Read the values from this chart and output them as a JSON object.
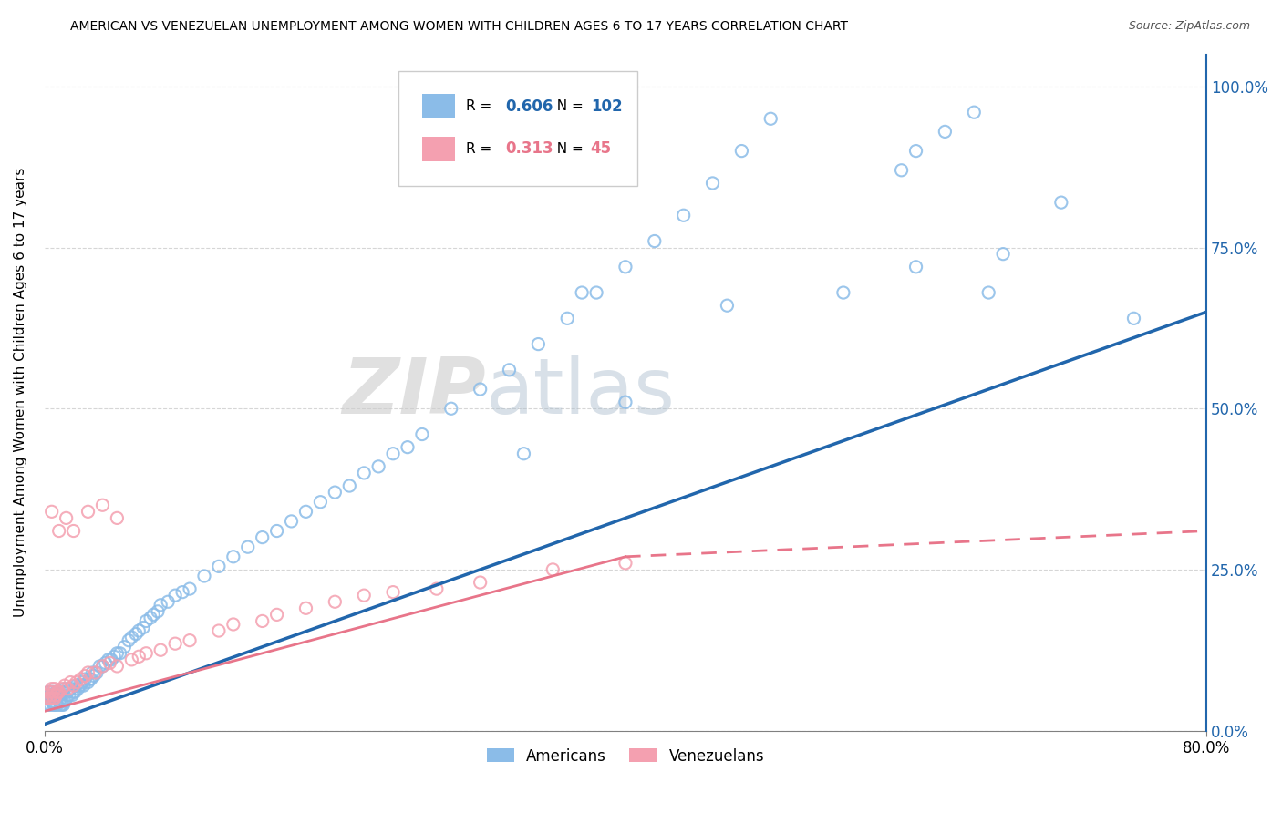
{
  "title": "AMERICAN VS VENEZUELAN UNEMPLOYMENT AMONG WOMEN WITH CHILDREN AGES 6 TO 17 YEARS CORRELATION CHART",
  "source": "Source: ZipAtlas.com",
  "ylabel": "Unemployment Among Women with Children Ages 6 to 17 years",
  "xlim": [
    0.0,
    0.8
  ],
  "ylim": [
    0.0,
    1.05
  ],
  "xticks": [
    0.0,
    0.8
  ],
  "xticklabels": [
    "0.0%",
    "80.0%"
  ],
  "yticks": [
    0.0,
    0.25,
    0.5,
    0.75,
    1.0
  ],
  "yticklabels_right": [
    "0.0%",
    "25.0%",
    "50.0%",
    "75.0%",
    "100.0%"
  ],
  "american_color": "#8BBCE8",
  "venezuelan_color": "#F4A0B0",
  "american_line_color": "#2166AC",
  "venezuelan_line_color": "#E8758A",
  "american_R": 0.606,
  "american_N": 102,
  "venezuelan_R": 0.313,
  "venezuelan_N": 45,
  "watermark_zip": "ZIP",
  "watermark_atlas": "atlas",
  "legend_american": "Americans",
  "legend_venezuelan": "Venezuelans",
  "grid_color": "#CCCCCC",
  "american_x": [
    0.001,
    0.002,
    0.003,
    0.003,
    0.004,
    0.004,
    0.005,
    0.005,
    0.006,
    0.006,
    0.007,
    0.007,
    0.008,
    0.008,
    0.009,
    0.009,
    0.01,
    0.01,
    0.011,
    0.011,
    0.012,
    0.012,
    0.013,
    0.013,
    0.014,
    0.014,
    0.015,
    0.016,
    0.017,
    0.018,
    0.019,
    0.02,
    0.021,
    0.022,
    0.023,
    0.024,
    0.025,
    0.026,
    0.027,
    0.028,
    0.03,
    0.031,
    0.032,
    0.033,
    0.034,
    0.036,
    0.038,
    0.04,
    0.042,
    0.044,
    0.046,
    0.048,
    0.05,
    0.052,
    0.055,
    0.058,
    0.06,
    0.063,
    0.065,
    0.068,
    0.07,
    0.073,
    0.075,
    0.078,
    0.08,
    0.085,
    0.09,
    0.095,
    0.1,
    0.11,
    0.12,
    0.13,
    0.14,
    0.15,
    0.16,
    0.17,
    0.18,
    0.19,
    0.2,
    0.21,
    0.22,
    0.23,
    0.24,
    0.25,
    0.26,
    0.28,
    0.3,
    0.32,
    0.34,
    0.36,
    0.38,
    0.4,
    0.42,
    0.44,
    0.46,
    0.48,
    0.5,
    0.55,
    0.6,
    0.65,
    0.7,
    0.75
  ],
  "american_y": [
    0.05,
    0.05,
    0.04,
    0.06,
    0.04,
    0.055,
    0.045,
    0.06,
    0.04,
    0.055,
    0.04,
    0.055,
    0.04,
    0.06,
    0.04,
    0.055,
    0.045,
    0.055,
    0.04,
    0.055,
    0.04,
    0.06,
    0.04,
    0.06,
    0.045,
    0.065,
    0.05,
    0.06,
    0.055,
    0.065,
    0.055,
    0.06,
    0.06,
    0.07,
    0.065,
    0.07,
    0.07,
    0.075,
    0.07,
    0.08,
    0.075,
    0.08,
    0.08,
    0.09,
    0.085,
    0.09,
    0.1,
    0.1,
    0.105,
    0.11,
    0.11,
    0.115,
    0.12,
    0.12,
    0.13,
    0.14,
    0.145,
    0.15,
    0.155,
    0.16,
    0.17,
    0.175,
    0.18,
    0.185,
    0.195,
    0.2,
    0.21,
    0.215,
    0.22,
    0.24,
    0.255,
    0.27,
    0.285,
    0.3,
    0.31,
    0.325,
    0.34,
    0.355,
    0.37,
    0.38,
    0.4,
    0.41,
    0.43,
    0.44,
    0.46,
    0.5,
    0.53,
    0.56,
    0.6,
    0.64,
    0.68,
    0.72,
    0.76,
    0.8,
    0.85,
    0.9,
    0.95,
    0.68,
    0.72,
    0.68,
    0.82,
    0.64
  ],
  "american_outliers_x": [
    0.33,
    0.37,
    0.4,
    0.47,
    0.59,
    0.6,
    0.62,
    0.64,
    0.66
  ],
  "american_outliers_y": [
    0.43,
    0.68,
    0.51,
    0.66,
    0.87,
    0.9,
    0.93,
    0.96,
    0.74
  ],
  "venezuelan_x": [
    0.001,
    0.002,
    0.003,
    0.003,
    0.004,
    0.005,
    0.005,
    0.006,
    0.006,
    0.007,
    0.007,
    0.008,
    0.009,
    0.01,
    0.012,
    0.014,
    0.016,
    0.018,
    0.02,
    0.022,
    0.025,
    0.028,
    0.03,
    0.035,
    0.04,
    0.045,
    0.05,
    0.06,
    0.065,
    0.07,
    0.08,
    0.09,
    0.1,
    0.12,
    0.13,
    0.15,
    0.16,
    0.18,
    0.2,
    0.22,
    0.24,
    0.27,
    0.3,
    0.35,
    0.4
  ],
  "venezuelan_y": [
    0.05,
    0.055,
    0.05,
    0.06,
    0.05,
    0.055,
    0.065,
    0.05,
    0.06,
    0.05,
    0.065,
    0.055,
    0.06,
    0.06,
    0.065,
    0.07,
    0.065,
    0.075,
    0.07,
    0.075,
    0.08,
    0.085,
    0.09,
    0.09,
    0.1,
    0.105,
    0.1,
    0.11,
    0.115,
    0.12,
    0.125,
    0.135,
    0.14,
    0.155,
    0.165,
    0.17,
    0.18,
    0.19,
    0.2,
    0.21,
    0.215,
    0.22,
    0.23,
    0.25,
    0.26
  ],
  "venezuelan_outliers_x": [
    0.005,
    0.01,
    0.015,
    0.02,
    0.03,
    0.04,
    0.05
  ],
  "venezuelan_outliers_y": [
    0.34,
    0.31,
    0.33,
    0.31,
    0.34,
    0.35,
    0.33
  ]
}
